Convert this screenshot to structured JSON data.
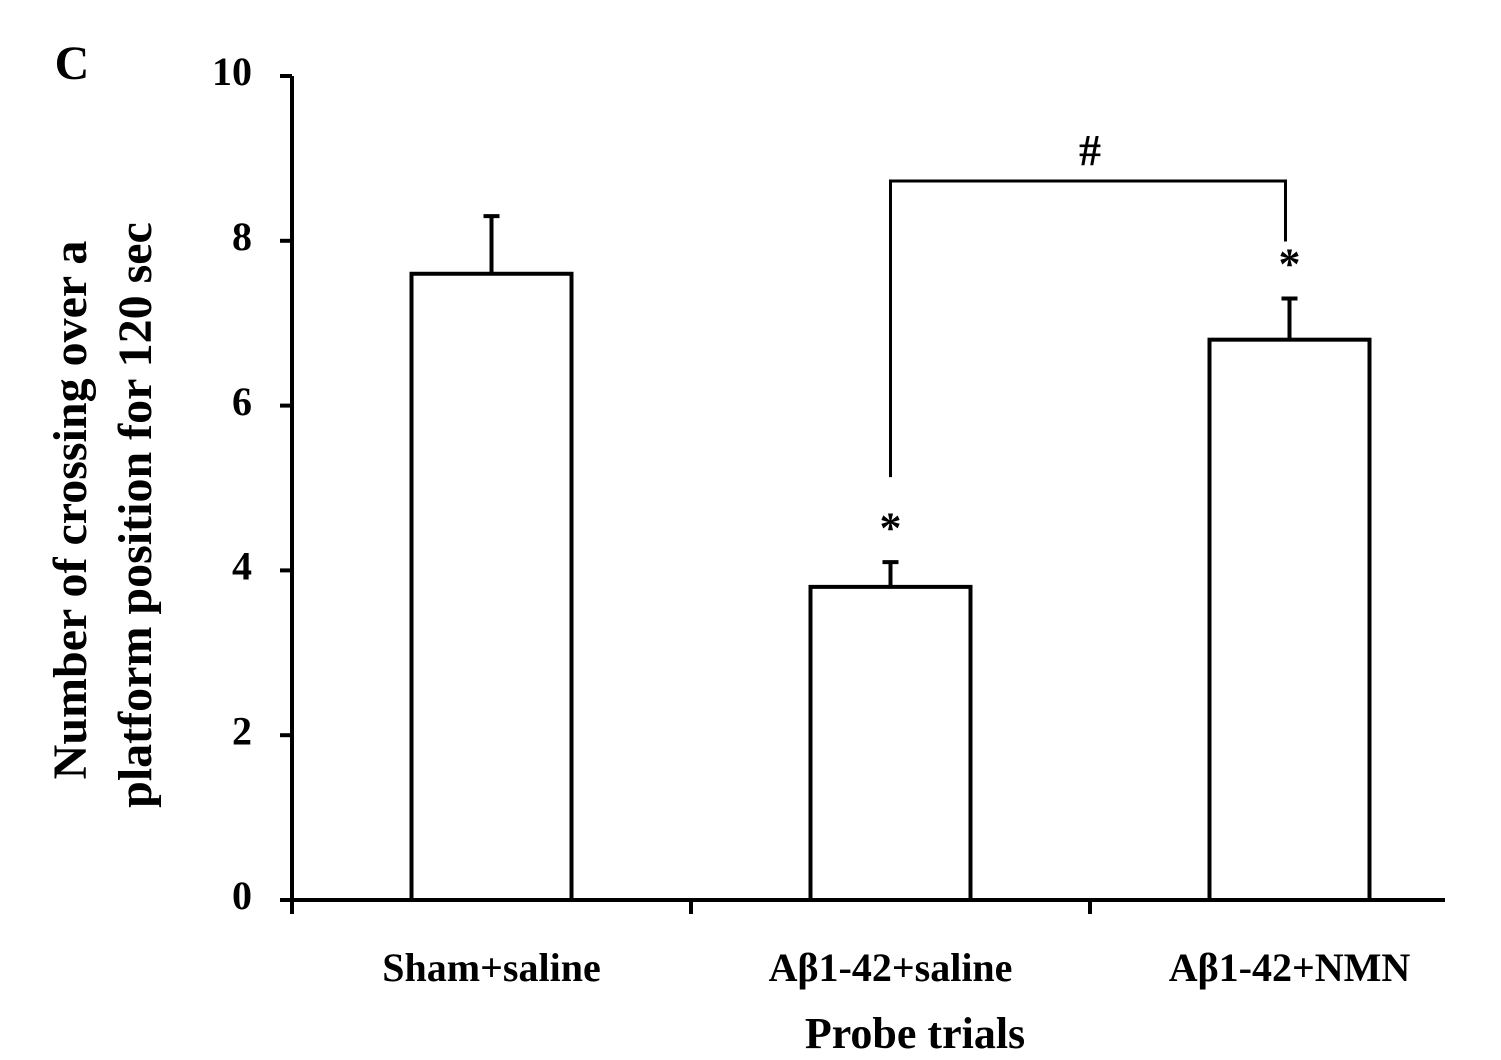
{
  "chart_data": {
    "type": "bar",
    "panel_label": "C",
    "y_label": [
      "Number of crossing over a",
      "platform position for 120 sec"
    ],
    "x_label": "Probe trials",
    "categories": [
      "Sham+saline",
      "Aβ1-42+saline",
      "Aβ1-42+NMN"
    ],
    "values": [
      7.6,
      3.8,
      6.8
    ],
    "errors": [
      0.7,
      0.3,
      0.5
    ],
    "significance": [
      null,
      "*",
      "*"
    ],
    "comparison_label": "#",
    "color": "#ffffff",
    "ylim": [
      0,
      10
    ],
    "yticks": [
      0,
      2,
      4,
      6,
      8,
      10
    ],
    "grid": false
  }
}
